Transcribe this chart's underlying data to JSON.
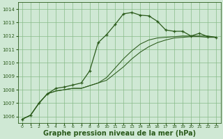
{
  "background_color": "#cfe8d4",
  "plot_bg_color": "#cfe8d4",
  "grid_color": "#88bb88",
  "line_color_main": "#2a5a1a",
  "xlabel": "Graphe pression niveau de la mer (hPa)",
  "xlabel_fontsize": 7.0,
  "xlim": [
    -0.5,
    23.5
  ],
  "ylim": [
    1005.5,
    1014.5
  ],
  "yticks": [
    1006,
    1007,
    1008,
    1009,
    1010,
    1011,
    1012,
    1013,
    1014
  ],
  "xticks": [
    0,
    1,
    2,
    3,
    4,
    5,
    6,
    7,
    8,
    9,
    10,
    11,
    12,
    13,
    14,
    15,
    16,
    17,
    18,
    19,
    20,
    21,
    22,
    23
  ],
  "series1_x": [
    0,
    1,
    2,
    3,
    4,
    5,
    6,
    7,
    8,
    9,
    10,
    11,
    12,
    13,
    14,
    15,
    16,
    17,
    18,
    19,
    20,
    21,
    22,
    23
  ],
  "series1_y": [
    1005.8,
    1006.1,
    1007.0,
    1007.7,
    1008.1,
    1008.2,
    1008.35,
    1008.5,
    1009.4,
    1011.5,
    1012.1,
    1012.85,
    1013.65,
    1013.75,
    1013.55,
    1013.5,
    1013.1,
    1012.45,
    1012.35,
    1012.35,
    1012.0,
    1012.2,
    1011.95,
    1011.9
  ],
  "series2_x": [
    0,
    1,
    2,
    3,
    4,
    5,
    6,
    7,
    8,
    9,
    10,
    11,
    12,
    13,
    14,
    15,
    16,
    17,
    18,
    19,
    20,
    21,
    22,
    23
  ],
  "series2_y": [
    1005.8,
    1006.1,
    1007.0,
    1007.7,
    1007.9,
    1008.0,
    1008.1,
    1008.1,
    1008.3,
    1008.5,
    1008.9,
    1009.6,
    1010.3,
    1010.9,
    1011.4,
    1011.7,
    1011.85,
    1011.9,
    1011.95,
    1012.0,
    1012.0,
    1012.0,
    1012.0,
    1011.9
  ],
  "series3_x": [
    0,
    1,
    2,
    3,
    4,
    5,
    6,
    7,
    8,
    9,
    10,
    11,
    12,
    13,
    14,
    15,
    16,
    17,
    18,
    19,
    20,
    21,
    22,
    23
  ],
  "series3_y": [
    1005.8,
    1006.1,
    1007.0,
    1007.7,
    1007.9,
    1008.0,
    1008.1,
    1008.1,
    1008.3,
    1008.5,
    1008.7,
    1009.2,
    1009.7,
    1010.3,
    1010.8,
    1011.2,
    1011.5,
    1011.7,
    1011.85,
    1011.9,
    1011.95,
    1011.95,
    1011.9,
    1011.9
  ]
}
